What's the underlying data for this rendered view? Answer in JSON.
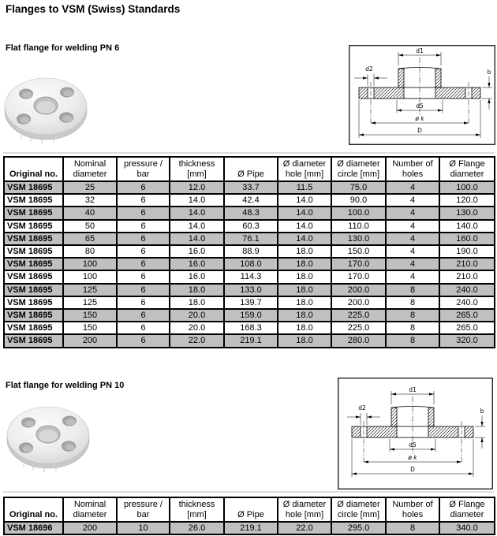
{
  "page": {
    "title": "Flanges to VSM (Swiss) Standards"
  },
  "colors": {
    "row_alt": "#c0c0c0",
    "border": "#000000",
    "background": "#ffffff"
  },
  "diagram_labels": {
    "d1": "d1",
    "d2": "d2",
    "b": "b",
    "d5": "d5",
    "k": "ø k",
    "D": "D"
  },
  "section1": {
    "heading": "Flat flange for welding PN 6",
    "table": {
      "headers": [
        "Original no.",
        "Nominal\ndiameter",
        "pressure /\nbar",
        "thickness\n[mm]",
        "Ø Pipe",
        "Ø diameter\nhole [mm]",
        "Ø diameter\ncircle [mm]",
        "Number of\nholes",
        "Ø Flange\ndiameter"
      ],
      "rows": [
        [
          "VSM 18695",
          "25",
          "6",
          "12.0",
          "33.7",
          "11.5",
          "75.0",
          "4",
          "100.0"
        ],
        [
          "VSM 18695",
          "32",
          "6",
          "14.0",
          "42.4",
          "14.0",
          "90.0",
          "4",
          "120.0"
        ],
        [
          "VSM 18695",
          "40",
          "6",
          "14.0",
          "48.3",
          "14.0",
          "100.0",
          "4",
          "130.0"
        ],
        [
          "VSM 18695",
          "50",
          "6",
          "14.0",
          "60.3",
          "14.0",
          "110.0",
          "4",
          "140.0"
        ],
        [
          "VSM 18695",
          "65",
          "6",
          "14.0",
          "76.1",
          "14.0",
          "130.0",
          "4",
          "160.0"
        ],
        [
          "VSM 18695",
          "80",
          "6",
          "16.0",
          "88.9",
          "18.0",
          "150.0",
          "4",
          "190.0"
        ],
        [
          "VSM 18695",
          "100",
          "6",
          "16.0",
          "108.0",
          "18.0",
          "170.0",
          "4",
          "210.0"
        ],
        [
          "VSM 18695",
          "100",
          "6",
          "16.0",
          "114.3",
          "18.0",
          "170.0",
          "4",
          "210.0"
        ],
        [
          "VSM 18695",
          "125",
          "6",
          "18.0",
          "133.0",
          "18.0",
          "200.0",
          "8",
          "240.0"
        ],
        [
          "VSM 18695",
          "125",
          "6",
          "18.0",
          "139.7",
          "18.0",
          "200.0",
          "8",
          "240.0"
        ],
        [
          "VSM 18695",
          "150",
          "6",
          "20.0",
          "159.0",
          "18.0",
          "225.0",
          "8",
          "265.0"
        ],
        [
          "VSM 18695",
          "150",
          "6",
          "20.0",
          "168.3",
          "18.0",
          "225.0",
          "8",
          "265.0"
        ],
        [
          "VSM 18695",
          "200",
          "6",
          "22.0",
          "219.1",
          "18.0",
          "280.0",
          "8",
          "320.0"
        ]
      ]
    }
  },
  "section2": {
    "heading": "Flat flange for welding PN 10",
    "table": {
      "headers": [
        "Original no.",
        "Nominal\ndiameter",
        "pressure /\nbar",
        "thickness\n[mm]",
        "Ø Pipe",
        "Ø diameter\nhole [mm]",
        "Ø diameter\ncircle [mm]",
        "Number of\nholes",
        "Ø Flange\ndiameter"
      ],
      "rows": [
        [
          "VSM 18696",
          "200",
          "10",
          "26.0",
          "219.1",
          "22.0",
          "295.0",
          "8",
          "340.0"
        ]
      ]
    }
  }
}
